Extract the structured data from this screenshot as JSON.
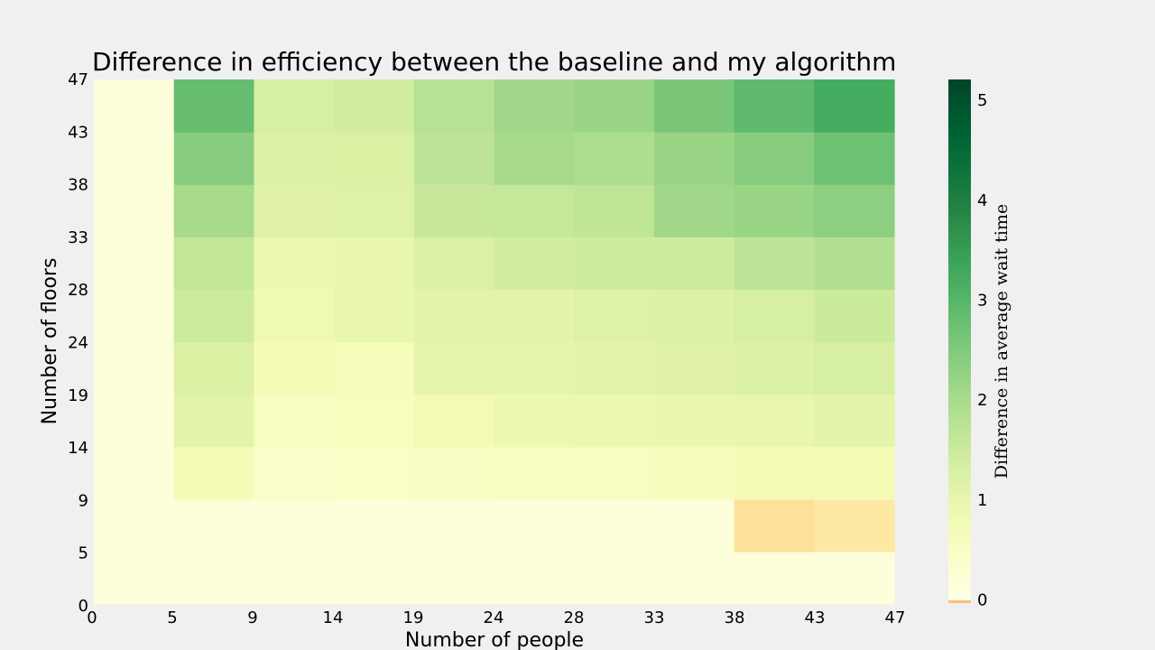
{
  "chart_data": {
    "type": "heatmap",
    "title": "Difference in efficiency between the baseline and my algorithm",
    "xlabel": "Number of people",
    "ylabel": "Number of floors",
    "x_ticks": [
      "0",
      "5",
      "9",
      "14",
      "19",
      "24",
      "28",
      "33",
      "38",
      "43",
      "47"
    ],
    "y_ticks": [
      "0",
      "5",
      "9",
      "14",
      "19",
      "24",
      "28",
      "33",
      "38",
      "43",
      "47"
    ],
    "colorbar": {
      "label": "Difference in average wait time",
      "ticks": [
        "0",
        "1",
        "2",
        "3",
        "4",
        "5"
      ],
      "range": [
        -0.05,
        5.2
      ],
      "colormap": "YlGn",
      "negative_color": "#fcbd7b"
    },
    "row_order": "bottom-to-top",
    "values": [
      [
        0.0,
        0.0,
        0.0,
        0.0,
        0.0,
        0.0,
        0.0,
        0.0,
        0.0,
        0.0
      ],
      [
        0.0,
        0.02,
        0.02,
        0.01,
        0.03,
        0.0,
        0.0,
        0.0,
        -0.4,
        -0.3
      ],
      [
        0.0,
        0.7,
        0.3,
        0.35,
        0.45,
        0.5,
        0.5,
        0.6,
        0.7,
        0.7
      ],
      [
        0.0,
        1.2,
        0.5,
        0.55,
        0.75,
        0.9,
        0.95,
        1.0,
        1.05,
        1.15
      ],
      [
        0.0,
        1.45,
        0.7,
        0.65,
        1.1,
        1.1,
        1.2,
        1.3,
        1.4,
        1.5
      ],
      [
        0.0,
        1.7,
        0.85,
        1.0,
        1.2,
        1.2,
        1.35,
        1.4,
        1.5,
        1.75
      ],
      [
        0.0,
        1.9,
        0.95,
        1.05,
        1.4,
        1.6,
        1.65,
        1.65,
        2.0,
        2.2
      ],
      [
        0.0,
        2.4,
        1.3,
        1.35,
        1.8,
        1.85,
        1.95,
        2.5,
        2.6,
        2.8
      ],
      [
        0.0,
        2.9,
        1.4,
        1.45,
        2.0,
        2.4,
        2.3,
        2.6,
        2.9,
        3.3
      ],
      [
        0.0,
        3.4,
        1.5,
        1.6,
        2.1,
        2.5,
        2.6,
        3.1,
        3.5,
        3.9
      ]
    ]
  }
}
